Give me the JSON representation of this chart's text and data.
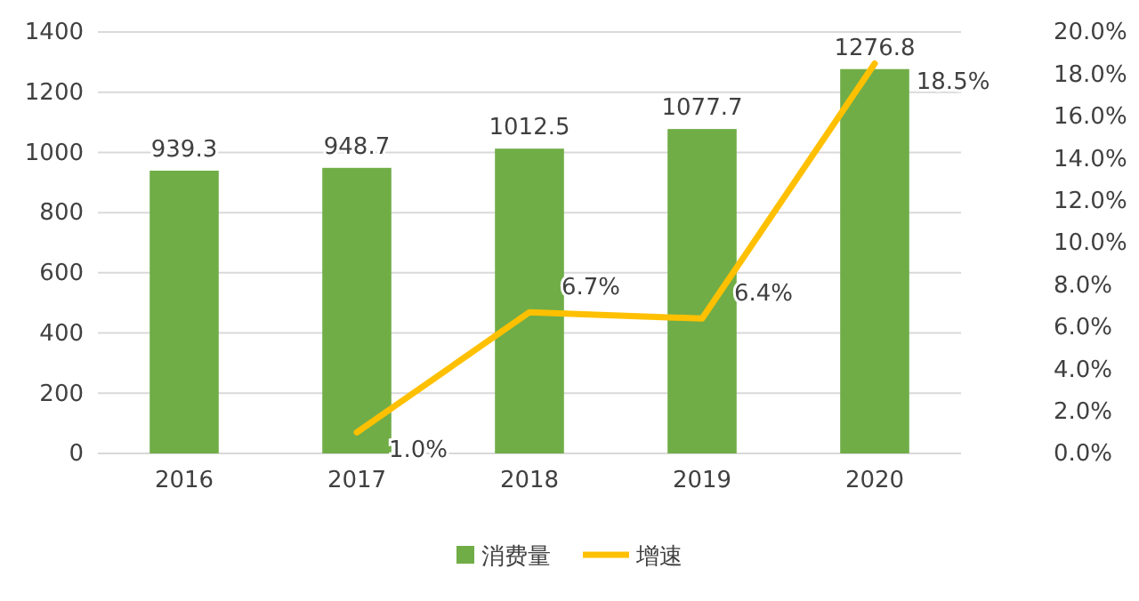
{
  "chart_data": {
    "type": "bar",
    "categories": [
      "2016",
      "2017",
      "2018",
      "2019",
      "2020"
    ],
    "series": [
      {
        "name": "消费量",
        "color": "#70ad47",
        "values": [
          939.3,
          948.7,
          1012.5,
          1077.7,
          1276.8
        ],
        "value_labels": [
          "939.3",
          "948.7",
          "1012.5",
          "1077.7",
          "1276.8"
        ]
      },
      {
        "name": "增速",
        "type": "line",
        "axis": "y2",
        "color": "#ffc000",
        "values": [
          null,
          1.0,
          6.7,
          6.4,
          18.5
        ],
        "value_labels": [
          null,
          "1.0%",
          "6.7%",
          "6.4%",
          "18.5%"
        ]
      }
    ],
    "ylim": [
      0,
      1400
    ],
    "yticks": [
      0,
      200,
      400,
      600,
      800,
      1000,
      1200,
      1400
    ],
    "y2lim": [
      0,
      20
    ],
    "y2ticks": [
      {
        "value": 0,
        "label": "0.0%"
      },
      {
        "value": 2,
        "label": "2.0%"
      },
      {
        "value": 4,
        "label": "4.0%"
      },
      {
        "value": 6,
        "label": "6.0%"
      },
      {
        "value": 8,
        "label": "8.0%"
      },
      {
        "value": 10,
        "label": "10.0%"
      },
      {
        "value": 12,
        "label": "12.0%"
      },
      {
        "value": 14,
        "label": "14.0%"
      },
      {
        "value": 16,
        "label": "16.0%"
      },
      {
        "value": 18,
        "label": "18.0%"
      },
      {
        "value": 20,
        "label": "20.0%"
      }
    ],
    "grid": "y",
    "legend": "bottom",
    "marker": "none",
    "line_style": "solid"
  }
}
